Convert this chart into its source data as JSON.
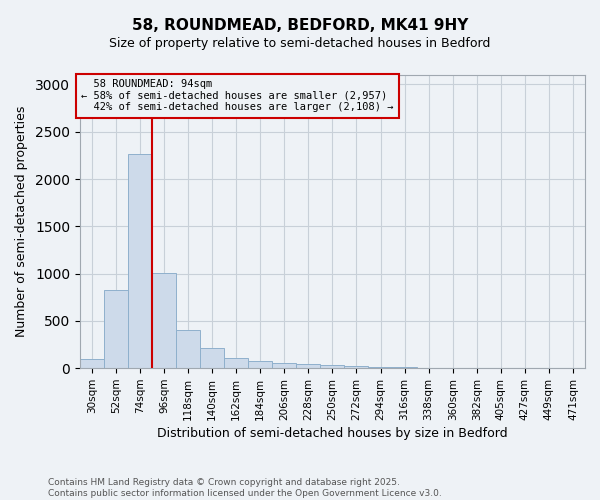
{
  "title_line1": "58, ROUNDMEAD, BEDFORD, MK41 9HY",
  "title_line2": "Size of property relative to semi-detached houses in Bedford",
  "xlabel": "Distribution of semi-detached houses by size in Bedford",
  "ylabel": "Number of semi-detached properties",
  "footnote_line1": "Contains HM Land Registry data © Crown copyright and database right 2025.",
  "footnote_line2": "Contains public sector information licensed under the Open Government Licence v3.0.",
  "bar_labels": [
    "30sqm",
    "52sqm",
    "74sqm",
    "96sqm",
    "118sqm",
    "140sqm",
    "162sqm",
    "184sqm",
    "206sqm",
    "228sqm",
    "250sqm",
    "272sqm",
    "294sqm",
    "316sqm",
    "338sqm",
    "360sqm",
    "382sqm",
    "405sqm",
    "427sqm",
    "449sqm",
    "471sqm"
  ],
  "bar_values": [
    100,
    830,
    2270,
    1010,
    400,
    210,
    110,
    75,
    60,
    45,
    30,
    20,
    10,
    8,
    5,
    4,
    3,
    2,
    2,
    1,
    1
  ],
  "bar_color": "#cddaea",
  "bar_edge_color": "#8fb0cc",
  "grid_color": "#c8d0d8",
  "property_label": "58 ROUNDMEAD: 94sqm",
  "smaller_pct": 58,
  "smaller_count": 2957,
  "larger_pct": 42,
  "larger_count": 2108,
  "vline_color": "#cc0000",
  "ylim": [
    0,
    3100
  ],
  "yticks": [
    0,
    500,
    1000,
    1500,
    2000,
    2500,
    3000
  ],
  "background_color": "#eef2f6"
}
